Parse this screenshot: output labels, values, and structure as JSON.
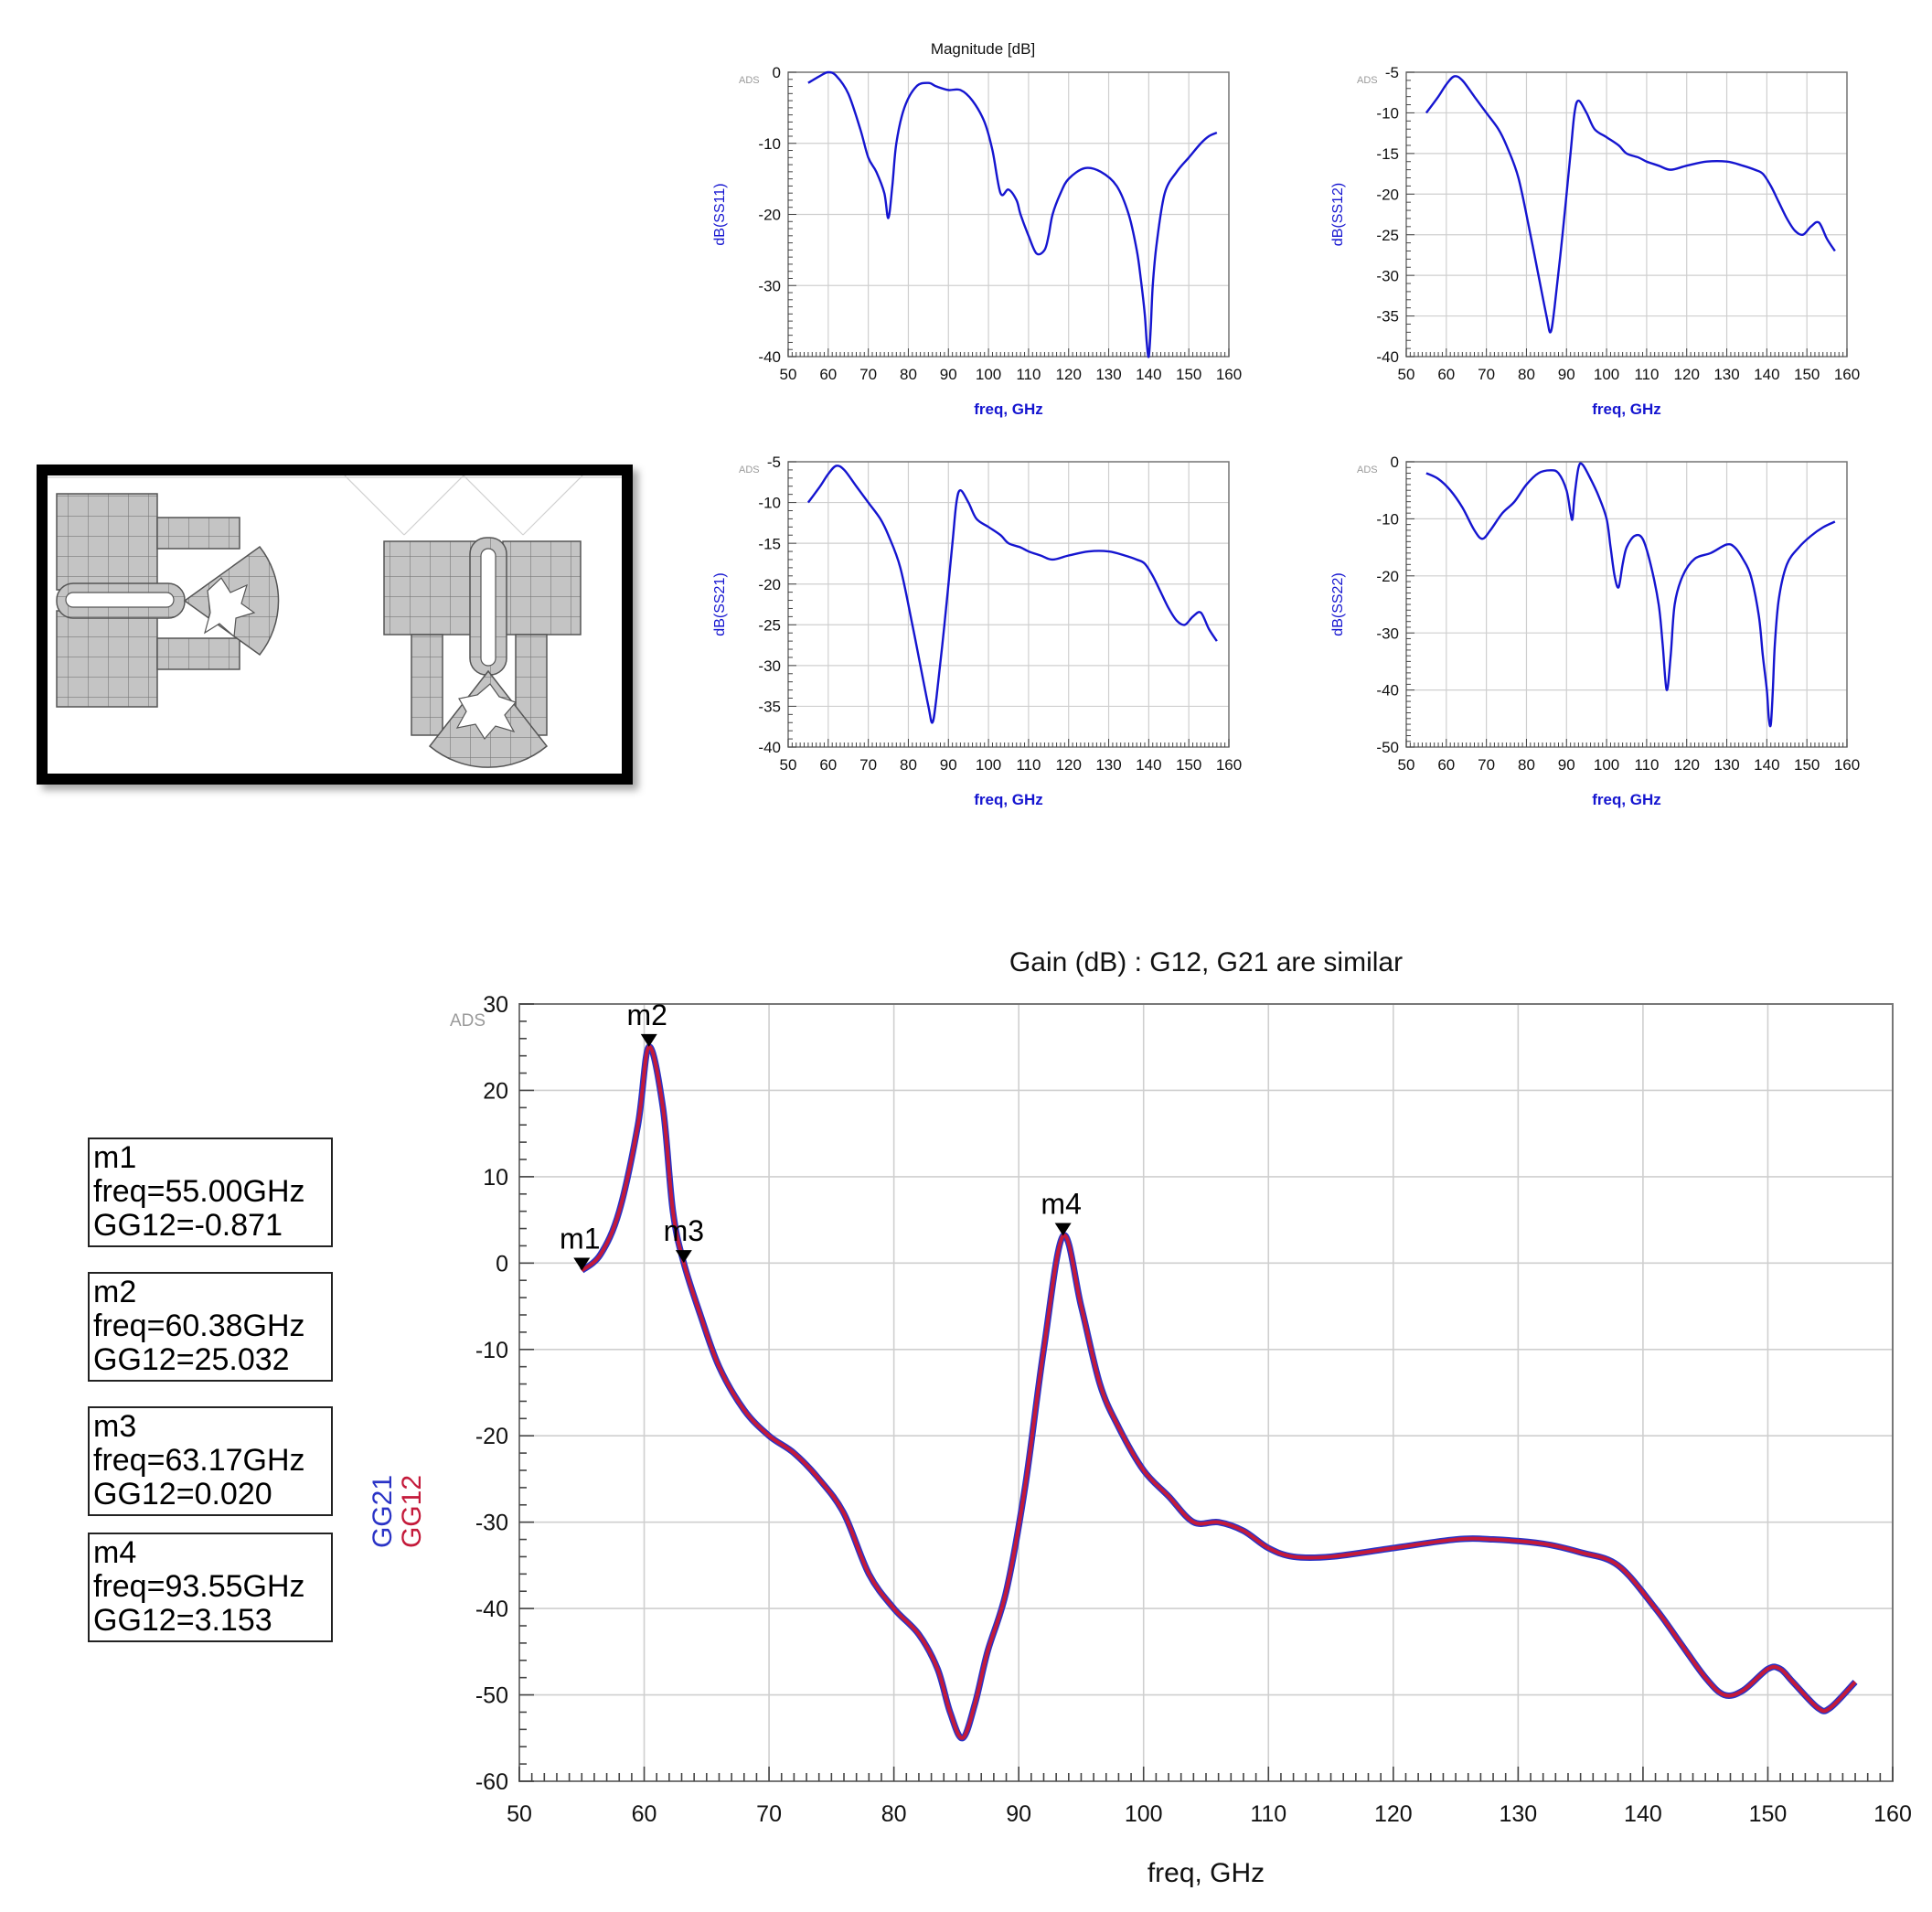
{
  "chart_data": [
    {
      "id": "s11",
      "type": "line",
      "title": "Magnitude [dB]",
      "watermark": "ADS",
      "xlabel": "freq, GHz",
      "ylabel": "dB(SS11)",
      "xlim": [
        50,
        160
      ],
      "ylim": [
        -40,
        0
      ],
      "xticks": [
        "50",
        "60",
        "70",
        "80",
        "90",
        "100",
        "110",
        "120",
        "130",
        "140",
        "150",
        "160"
      ],
      "yticks": [
        "0",
        "-10",
        "-20",
        "-30",
        "-40"
      ],
      "grid": true,
      "color": "#1515d0",
      "series": [
        {
          "x": [
            55,
            58,
            60,
            62,
            65,
            68,
            70,
            72,
            74,
            75,
            76,
            77,
            79,
            82,
            85,
            87,
            90,
            93,
            96,
            99,
            101,
            103,
            105,
            107,
            108,
            110,
            112,
            114,
            115,
            116,
            118,
            120,
            124,
            128,
            132,
            135,
            137,
            138,
            139,
            139.5,
            140,
            140.5,
            141,
            142,
            144,
            147,
            150,
            153,
            155,
            157
          ],
          "y": [
            -1.5,
            -0.5,
            0,
            -0.5,
            -3,
            -8,
            -12,
            -14,
            -17,
            -20.5,
            -16,
            -10,
            -5,
            -2,
            -1.5,
            -2,
            -2.5,
            -2.5,
            -4,
            -7,
            -11,
            -17,
            -16.5,
            -18,
            -20,
            -23,
            -25.5,
            -25,
            -23,
            -20,
            -17,
            -15,
            -13.5,
            -14,
            -16,
            -20,
            -25,
            -29,
            -34,
            -38,
            -40,
            -36,
            -30,
            -24,
            -17,
            -14,
            -12,
            -10,
            -9,
            -8.5
          ]
        }
      ]
    },
    {
      "id": "s12",
      "type": "line",
      "watermark": "ADS",
      "xlabel": "freq, GHz",
      "ylabel": "dB(SS12)",
      "xlim": [
        50,
        160
      ],
      "ylim": [
        -40,
        -5
      ],
      "xticks": [
        "50",
        "60",
        "70",
        "80",
        "90",
        "100",
        "110",
        "120",
        "130",
        "140",
        "150",
        "160"
      ],
      "yticks": [
        "-5",
        "-10",
        "-15",
        "-20",
        "-25",
        "-30",
        "-35",
        "-40"
      ],
      "grid": true,
      "color": "#1515d0",
      "series": [
        {
          "x": [
            55,
            58,
            60,
            62,
            64,
            67,
            70,
            73,
            75,
            78,
            81,
            83,
            85,
            86,
            87,
            89,
            91,
            92,
            93,
            95,
            97,
            100,
            103,
            105,
            108,
            110,
            113,
            116,
            120,
            125,
            130,
            134,
            137,
            139,
            141,
            143,
            145,
            147,
            149,
            151,
            153,
            155,
            157
          ],
          "y": [
            -10,
            -8,
            -6.5,
            -5.5,
            -6,
            -8,
            -10,
            -12,
            -14,
            -18,
            -25,
            -30,
            -35,
            -37,
            -34,
            -25,
            -15,
            -10,
            -8.5,
            -10,
            -12,
            -13,
            -14,
            -15,
            -15.5,
            -16,
            -16.5,
            -17,
            -16.5,
            -16,
            -16,
            -16.5,
            -17,
            -17.5,
            -19,
            -21,
            -23,
            -24.5,
            -25,
            -24,
            -23.5,
            -25.5,
            -27
          ]
        }
      ]
    },
    {
      "id": "s21",
      "type": "line",
      "watermark": "ADS",
      "xlabel": "freq, GHz",
      "ylabel": "dB(SS21)",
      "xlim": [
        50,
        160
      ],
      "ylim": [
        -40,
        -5
      ],
      "xticks": [
        "50",
        "60",
        "70",
        "80",
        "90",
        "100",
        "110",
        "120",
        "130",
        "140",
        "150",
        "160"
      ],
      "yticks": [
        "-5",
        "-10",
        "-15",
        "-20",
        "-25",
        "-30",
        "-35",
        "-40"
      ],
      "grid": true,
      "color": "#1515d0",
      "series": [
        {
          "x": [
            55,
            58,
            60,
            62,
            64,
            67,
            70,
            73,
            75,
            78,
            81,
            83,
            85,
            86,
            87,
            89,
            91,
            92,
            93,
            95,
            97,
            100,
            103,
            105,
            108,
            110,
            113,
            116,
            120,
            125,
            130,
            134,
            137,
            139,
            141,
            143,
            145,
            147,
            149,
            151,
            153,
            155,
            157
          ],
          "y": [
            -10,
            -8,
            -6.5,
            -5.5,
            -6,
            -8,
            -10,
            -12,
            -14,
            -18,
            -25,
            -30,
            -35,
            -37,
            -34,
            -25,
            -15,
            -10,
            -8.5,
            -10,
            -12,
            -13,
            -14,
            -15,
            -15.5,
            -16,
            -16.5,
            -17,
            -16.5,
            -16,
            -16,
            -16.5,
            -17,
            -17.5,
            -19,
            -21,
            -23,
            -24.5,
            -25,
            -24,
            -23.5,
            -25.5,
            -27
          ]
        }
      ]
    },
    {
      "id": "s22",
      "type": "line",
      "watermark": "ADS",
      "xlabel": "freq, GHz",
      "ylabel": "dB(SS22)",
      "xlim": [
        50,
        160
      ],
      "ylim": [
        -50,
        0
      ],
      "xticks": [
        "50",
        "60",
        "70",
        "80",
        "90",
        "100",
        "110",
        "120",
        "130",
        "140",
        "150",
        "160"
      ],
      "yticks": [
        "0",
        "-10",
        "-20",
        "-30",
        "-40",
        "-50"
      ],
      "grid": true,
      "color": "#1515d0",
      "series": [
        {
          "x": [
            55,
            58,
            61,
            64,
            67,
            69,
            71,
            74,
            77,
            80,
            83,
            86,
            88,
            90,
            91,
            91.5,
            92,
            93,
            94,
            96,
            98,
            100,
            101,
            102,
            103,
            104,
            105,
            107,
            109,
            111,
            113,
            114,
            115,
            116,
            117,
            119,
            122,
            126,
            130,
            132,
            134,
            136,
            138,
            139,
            140,
            140.5,
            141,
            141.5,
            142,
            143,
            145,
            148,
            151,
            154,
            157
          ],
          "y": [
            -2,
            -3,
            -5,
            -8,
            -12,
            -13.5,
            -12,
            -9,
            -7,
            -4,
            -2,
            -1.5,
            -2,
            -5,
            -9,
            -10,
            -6,
            -1,
            -0.5,
            -3,
            -6,
            -10,
            -15,
            -20,
            -22,
            -18,
            -15,
            -13,
            -13.5,
            -18,
            -25,
            -32,
            -40,
            -34,
            -25,
            -20,
            -17,
            -16,
            -14.5,
            -15,
            -17,
            -20,
            -27,
            -34,
            -40,
            -45,
            -46,
            -40,
            -32,
            -24,
            -18,
            -15,
            -13,
            -11.5,
            -10.5
          ]
        }
      ]
    },
    {
      "id": "gain",
      "type": "line",
      "title": "Gain (dB) : G12, G21 are similar",
      "watermark": "ADS",
      "xlabel": "freq, GHz",
      "ylabel_parts": [
        "GG21",
        "GG12"
      ],
      "xlim": [
        50,
        160
      ],
      "ylim": [
        -60,
        30
      ],
      "xticks": [
        "50",
        "60",
        "70",
        "80",
        "90",
        "100",
        "110",
        "120",
        "130",
        "140",
        "150",
        "160"
      ],
      "yticks": [
        "30",
        "20",
        "10",
        "0",
        "-10",
        "-20",
        "-30",
        "-40",
        "-50",
        "-60"
      ],
      "grid": true,
      "series": [
        {
          "name": "GG21",
          "color": "#2a33c6",
          "x": [
            55,
            56.5,
            58,
            59.5,
            60.38,
            61.5,
            62.3,
            63.17,
            64.5,
            66,
            68,
            70,
            72,
            74,
            76,
            78,
            80,
            82,
            83.5,
            84.5,
            85.5,
            86.5,
            87.5,
            89,
            90.5,
            92,
            93.55,
            95,
            96.5,
            98,
            100,
            102,
            104,
            106,
            108,
            110,
            112,
            115,
            120,
            125,
            128,
            132,
            135,
            138,
            141,
            143,
            145,
            146.5,
            148,
            150,
            151,
            152,
            154,
            155,
            157
          ],
          "y": [
            -0.871,
            1,
            6,
            16,
            25.032,
            18,
            6,
            0.02,
            -6,
            -12,
            -17,
            -20,
            -22,
            -25,
            -29,
            -36,
            -40,
            -43,
            -47,
            -52,
            -55,
            -51,
            -45,
            -38,
            -26,
            -10,
            3.153,
            -5,
            -14,
            -19,
            -24,
            -27,
            -30,
            -30,
            -31,
            -33,
            -34,
            -34,
            -33,
            -32,
            -32,
            -32.5,
            -33.5,
            -35,
            -40,
            -44,
            -48,
            -50,
            -49.5,
            -47,
            -47,
            -48.5,
            -51.5,
            -51.5,
            -48.5
          ]
        },
        {
          "name": "GG12",
          "color": "#c41a3a",
          "x": [
            55,
            56.5,
            58,
            59.5,
            60.38,
            61.5,
            62.3,
            63.17,
            64.5,
            66,
            68,
            70,
            72,
            74,
            76,
            78,
            80,
            82,
            83.5,
            84.5,
            85.5,
            86.5,
            87.5,
            89,
            90.5,
            92,
            93.55,
            95,
            96.5,
            98,
            100,
            102,
            104,
            106,
            108,
            110,
            112,
            115,
            120,
            125,
            128,
            132,
            135,
            138,
            141,
            143,
            145,
            146.5,
            148,
            150,
            151,
            152,
            154,
            155,
            157
          ],
          "y": [
            -0.871,
            1,
            6,
            16,
            25.032,
            18,
            6,
            0.02,
            -6,
            -12,
            -17,
            -20,
            -22,
            -25,
            -29,
            -36,
            -40,
            -43,
            -47,
            -52,
            -55,
            -51,
            -45,
            -38,
            -26,
            -10,
            3.153,
            -5,
            -14,
            -19,
            -24,
            -27,
            -30,
            -30,
            -31,
            -33,
            -34,
            -34,
            -33,
            -32,
            -32,
            -32.5,
            -33.5,
            -35,
            -40,
            -44,
            -48,
            -50,
            -49.5,
            -47,
            -47,
            -48.5,
            -51.5,
            -51.5,
            -48.5
          ]
        }
      ],
      "markers": [
        {
          "name": "m1",
          "freq": 55.0,
          "value": -0.871
        },
        {
          "name": "m2",
          "freq": 60.38,
          "value": 25.032
        },
        {
          "name": "m3",
          "freq": 63.17,
          "value": 0.02
        },
        {
          "name": "m4",
          "freq": 93.55,
          "value": 3.153
        }
      ]
    }
  ],
  "marker_boxes": [
    {
      "name": "m1",
      "freq_text": "freq=55.00GHz",
      "value_text": "GG12=-0.871"
    },
    {
      "name": "m2",
      "freq_text": "freq=60.38GHz",
      "value_text": "GG12=25.032"
    },
    {
      "name": "m3",
      "freq_text": "freq=63.17GHz",
      "value_text": "GG12=0.020"
    },
    {
      "name": "m4",
      "freq_text": "freq=93.55GHz",
      "value_text": "GG12=3.153"
    }
  ]
}
